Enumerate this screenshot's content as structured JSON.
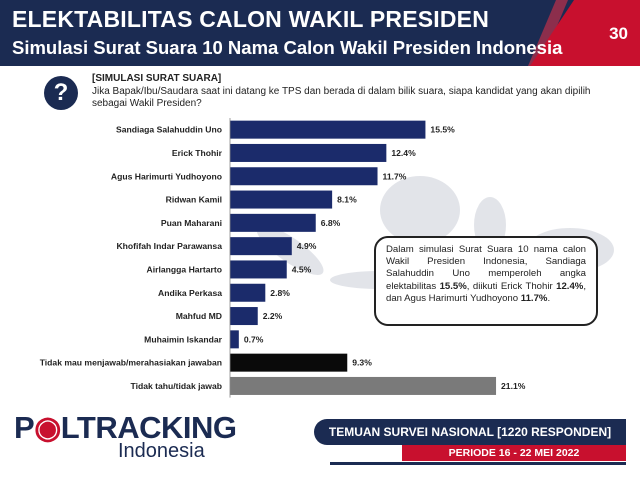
{
  "header": {
    "title": "ELEKTABILITAS CALON WAKIL PRESIDEN",
    "subtitle": "Simulasi Surat Suara 10 Nama Calon Wakil Presiden Indonesia",
    "page_number": "30"
  },
  "question": {
    "icon": "question-mark-icon",
    "label": "[SIMULASI SURAT SUARA]",
    "text": "Jika Bapak/Ibu/Saudara saat ini datang ke TPS dan berada di dalam bilik suara, siapa kandidat yang akan dipilih sebagai Wakil Presiden?"
  },
  "chart_data": {
    "type": "bar",
    "orientation": "horizontal",
    "title": "",
    "xlabel": "",
    "ylabel": "",
    "xlim": [
      0,
      23
    ],
    "grid": false,
    "categories": [
      "Sandiaga Salahuddin Uno",
      "Erick Thohir",
      "Agus Harimurti Yudhoyono",
      "Ridwan Kamil",
      "Puan Maharani",
      "Khofifah Indar Parawansa",
      "Airlangga Hartarto",
      "Andika Perkasa",
      "Mahfud MD",
      "Muhaimin Iskandar",
      "Tidak mau menjawab/merahasiakan jawaban",
      "Tidak tahu/tidak jawab"
    ],
    "values": [
      15.5,
      12.4,
      11.7,
      8.1,
      6.8,
      4.9,
      4.5,
      2.8,
      2.2,
      0.7,
      9.3,
      21.1
    ],
    "value_labels": [
      "15.5%",
      "12.4%",
      "11.7%",
      "8.1%",
      "6.8%",
      "4.9%",
      "4.5%",
      "2.8%",
      "2.2%",
      "0.7%",
      "9.3%",
      "21.1%"
    ],
    "colors": [
      "#1b2b6b",
      "#1b2b6b",
      "#1b2b6b",
      "#1b2b6b",
      "#1b2b6b",
      "#1b2b6b",
      "#1b2b6b",
      "#1b2b6b",
      "#1b2b6b",
      "#1b2b6b",
      "#0a0a0a",
      "#7a7a7a"
    ]
  },
  "callout": {
    "part1": "Dalam simulasi Surat Suara 10 nama calon Wakil Presiden Indonesia, Sandiaga Salahuddin Uno memperoleh angka elektabilitas ",
    "v1": "15.5%",
    "part2": ", diikuti Erick Thohir ",
    "v2": "12.4%",
    "part3": ", dan Agus Harimurti Yudhoyono ",
    "v3": "11.7%",
    "part4": "."
  },
  "footer": {
    "logo_main_a": "P",
    "logo_main_b": "LTRACKING",
    "logo_sub": "Indonesia",
    "survey": "TEMUAN SURVEI NASIONAL [1220 RESPONDEN]",
    "period": "PERIODE 16 - 22 MEI 2022"
  },
  "colors": {
    "navy": "#1b2b52",
    "red": "#c8102e"
  }
}
